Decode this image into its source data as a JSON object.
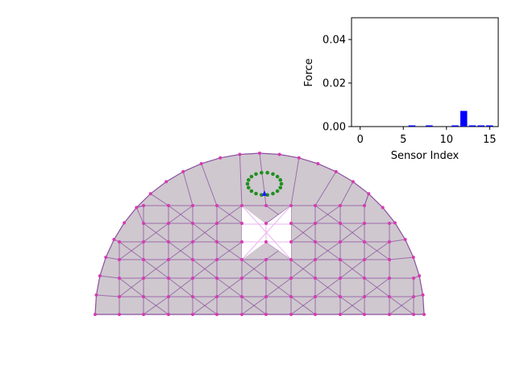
{
  "chart_data": {
    "type": "bar",
    "ylabel": "Force",
    "xlabel": "Sensor Index",
    "x": [
      0,
      1,
      2,
      3,
      4,
      5,
      6,
      7,
      8,
      9,
      10,
      11,
      12,
      13,
      14,
      15
    ],
    "values": [
      0,
      0,
      0,
      0,
      0,
      0,
      0.0003,
      0,
      0.0004,
      0,
      0,
      0.0003,
      0.0072,
      0.0004,
      0.0004,
      0.0005
    ],
    "ylim": [
      0,
      0.05
    ],
    "xlim": [
      -1,
      16
    ],
    "yticks": [
      0.0,
      0.02,
      0.04
    ],
    "ytick_labels": [
      "0.00",
      "0.02",
      "0.04"
    ],
    "xticks": [
      0,
      5,
      10,
      15
    ],
    "xtick_labels": [
      "0",
      "5",
      "10",
      "15"
    ],
    "bar_color": "#0000ff"
  },
  "scene": {
    "mesh_fill": "#cfc8cf",
    "mesh_edge": "#8b4f9e",
    "node_color": "#d63ab4",
    "hole_edge": "#e9b6ee",
    "contact_color": "#1f8f1f",
    "arrow_color": "#1a1aff",
    "background": "#ffffff"
  }
}
